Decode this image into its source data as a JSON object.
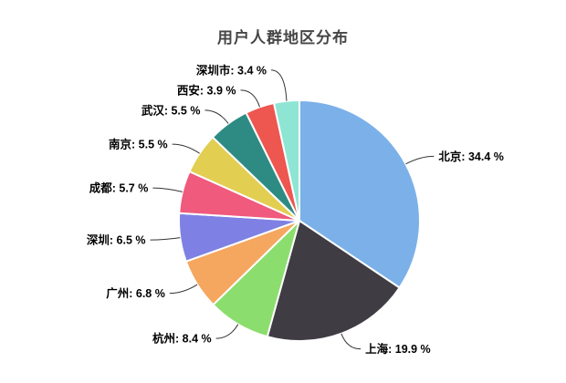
{
  "chart": {
    "background": "#ffffff",
    "title_color": "#464646",
    "label_color": "#000000",
    "label_line_color": "#333333",
    "slice_border_color": "#ffffff"
  },
  "chart_data": {
    "type": "pie",
    "title": "用户人群地区分布",
    "unit": "%",
    "label_format": "{name}: {value} %",
    "legend_position": "none",
    "start_angle": "top",
    "direction": "clockwise",
    "labels_outside_with_leader_lines": true,
    "slices": [
      {
        "label": "北京",
        "value": 34.4,
        "color": "#7BB1E8"
      },
      {
        "label": "上海",
        "value": 19.9,
        "color": "#403C44"
      },
      {
        "label": "杭州",
        "value": 8.4,
        "color": "#8BDE6E"
      },
      {
        "label": "广州",
        "value": 6.8,
        "color": "#F5A75F"
      },
      {
        "label": "深圳",
        "value": 6.5,
        "color": "#7E81E3"
      },
      {
        "label": "成都",
        "value": 5.7,
        "color": "#EF5A7D"
      },
      {
        "label": "南京",
        "value": 5.5,
        "color": "#E2CE51"
      },
      {
        "label": "武汉",
        "value": 5.5,
        "color": "#2E8B84"
      },
      {
        "label": "西安",
        "value": 3.9,
        "color": "#EE5650"
      },
      {
        "label": "深圳市",
        "value": 3.4,
        "color": "#8EE5D4"
      }
    ]
  }
}
